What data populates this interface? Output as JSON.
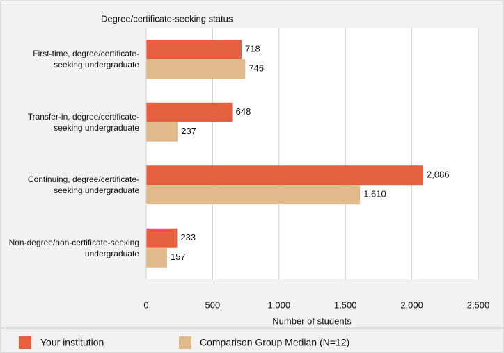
{
  "chart_data": {
    "type": "bar",
    "orientation": "horizontal",
    "title": "Degree/certificate-seeking status",
    "categories": [
      "First-time, degree/certificate-seeking undergraduate",
      "Transfer-in, degree/certificate-seeking undergraduate",
      "Continuing, degree/certificate-seeking undergraduate",
      "Non-degree/non-certificate-seeking undergraduate"
    ],
    "series": [
      {
        "name": "Your institution",
        "color": "#e4603f",
        "values": [
          718,
          648,
          2086,
          233
        ],
        "value_labels": [
          "718",
          "648",
          "2,086",
          "233"
        ]
      },
      {
        "name": "Comparison Group Median (N=12)",
        "color": "#e2b98a",
        "values": [
          746,
          237,
          1610,
          157
        ],
        "value_labels": [
          "746",
          "237",
          "1,610",
          "157"
        ]
      }
    ],
    "xlabel": "Number of students",
    "xlim": [
      0,
      2500
    ],
    "xticks": [
      0,
      500,
      {
        "value": 1000,
        "label": "1,000"
      },
      {
        "value": 1500,
        "label": "1,500"
      },
      {
        "value": 2000,
        "label": "2,000"
      },
      {
        "value": 2500,
        "label": "2,500"
      }
    ],
    "grid": true,
    "legend": "bottom"
  }
}
